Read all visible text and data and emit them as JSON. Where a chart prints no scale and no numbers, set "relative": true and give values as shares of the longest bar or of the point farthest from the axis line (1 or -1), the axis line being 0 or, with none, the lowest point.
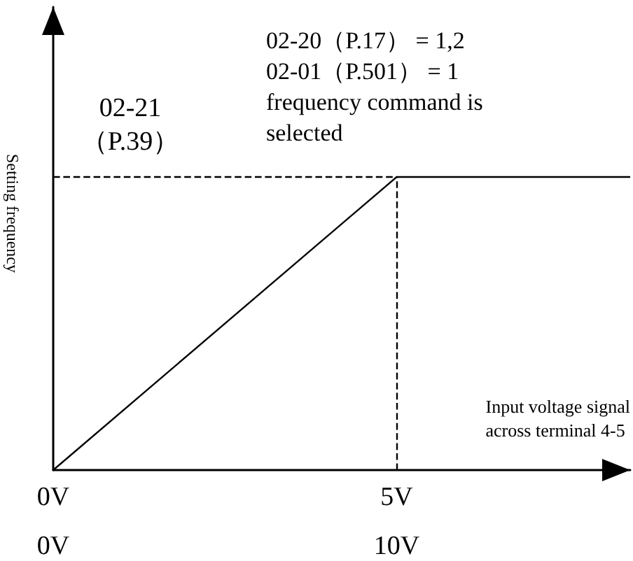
{
  "chart_data": {
    "type": "line",
    "relative": true,
    "x": [
      0,
      5,
      8.4
    ],
    "series": [
      {
        "color": "#000000",
        "values": [
          0,
          1,
          1
        ]
      }
    ],
    "xlim": [
      0,
      8.4
    ],
    "xticks": [
      {
        "value": 0,
        "label": "0V"
      },
      {
        "value": 5,
        "label": "5V"
      }
    ],
    "x2lim": [
      0,
      16.8
    ],
    "x2ticks": [
      {
        "value": 0,
        "label": "0V"
      },
      {
        "value": 10,
        "label": "10V"
      }
    ],
    "xlabel": "Input voltage signal\nacross terminal 4-5",
    "ylabel": "Setting frequency",
    "ref_lines": [
      {
        "axis": "y",
        "value": 1,
        "label": "02-21\n（P.39）",
        "line_style": "dashed",
        "color": "#000000"
      },
      {
        "axis": "x",
        "value": 5,
        "label": null,
        "line_style": "dashed",
        "color": "#000000"
      }
    ],
    "annotations": [
      "02-20（P.17） = 1,2\n02-01（P.501） = 1\nfrequency command is\nselected"
    ],
    "grid": false,
    "marker": "none",
    "line_style": "solid"
  }
}
